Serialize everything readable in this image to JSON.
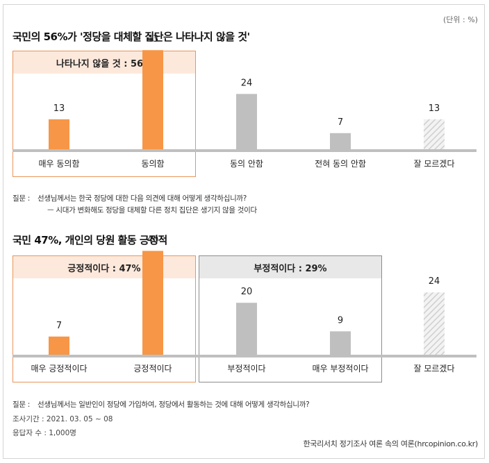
{
  "unit": "(단위 : %)",
  "chart_data": [
    {
      "type": "bar",
      "title": "국민의 56%가 '정당을 대체할 집단은 나타나지 않을 것'",
      "categories": [
        "매우 동의함",
        "동의함",
        "동의 안함",
        "전혀 동의 안함",
        "잘 모르겠다"
      ],
      "values": [
        13,
        43,
        24,
        7,
        13
      ],
      "colors": [
        "#f79646",
        "#f79646",
        "#bfbfbf",
        "#bfbfbf",
        "hatched"
      ],
      "ylim": [
        0,
        50
      ],
      "groups": [
        {
          "label": "나타나지 않을 것 : 56%",
          "style": "orange",
          "members": [
            0,
            1
          ]
        }
      ],
      "note_label": "질문 :",
      "note_lines": [
        "선생님께서는 한국 정당에 대한 다음 의견에 대해 어떻게 생각하십니까?",
        "ㅡ 시대가 변화해도 정당을 대체할 다른 정치 집단은 생기지 않을 것이다"
      ]
    },
    {
      "type": "bar",
      "title": "국민 47%, 개인의 당원 활동 긍정적",
      "categories": [
        "매우 긍정적이다",
        "긍정적이다",
        "부정적이다",
        "매우 부정적이다",
        "잘 모르겠다"
      ],
      "values": [
        7,
        40,
        20,
        9,
        24
      ],
      "colors": [
        "#f79646",
        "#f79646",
        "#bfbfbf",
        "#bfbfbf",
        "hatched"
      ],
      "ylim": [
        0,
        50
      ],
      "groups": [
        {
          "label": "긍정적이다 : 47%",
          "style": "orange",
          "members": [
            0,
            1
          ]
        },
        {
          "label": "부정적이다 : 29%",
          "style": "gray",
          "members": [
            2,
            3
          ]
        }
      ],
      "note_label": "질문 :",
      "note_lines": [
        "선생님께서는 일반인이 정당에 가입하여, 정당에서 활동하는 것에 대해 어떻게 생각하십니까?"
      ]
    }
  ],
  "survey_period": "조사기간 : 2021. 03. 05 ~ 08",
  "respondents": "응답자 수 : 1,000명",
  "source": "한국리서치 정기조사 여론 속의 여론(hrcopinion.co.kr)"
}
